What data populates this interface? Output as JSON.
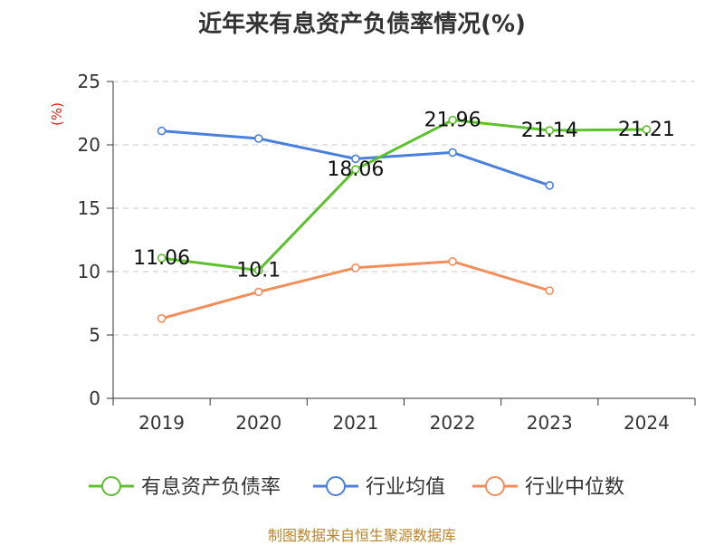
{
  "chart_data": {
    "type": "line",
    "title": "近年来有息资产负债率情况(%)",
    "ylabel": "(%)",
    "categories": [
      "2019",
      "2020",
      "2021",
      "2022",
      "2023",
      "2024"
    ],
    "ylim": [
      0,
      25
    ],
    "yticks": [
      0,
      5,
      10,
      15,
      20,
      25
    ],
    "grid": true,
    "legend_position": "bottom",
    "series": [
      {
        "name": "有息资产负债率",
        "color": "#5cc12c",
        "values": [
          11.06,
          10.1,
          18.06,
          21.96,
          21.14,
          21.21
        ],
        "labels": [
          "11.06",
          "10.1",
          "18.06",
          "21.96",
          "21.14",
          "21.21"
        ]
      },
      {
        "name": "行业均值",
        "color": "#4a7fdb",
        "values": [
          21.1,
          20.5,
          18.9,
          19.4,
          16.8,
          null
        ]
      },
      {
        "name": "行业中位数",
        "color": "#f28e5a",
        "values": [
          6.3,
          8.4,
          10.3,
          10.8,
          8.5,
          null
        ]
      }
    ]
  },
  "source": "制图数据来自恒生聚源数据库"
}
